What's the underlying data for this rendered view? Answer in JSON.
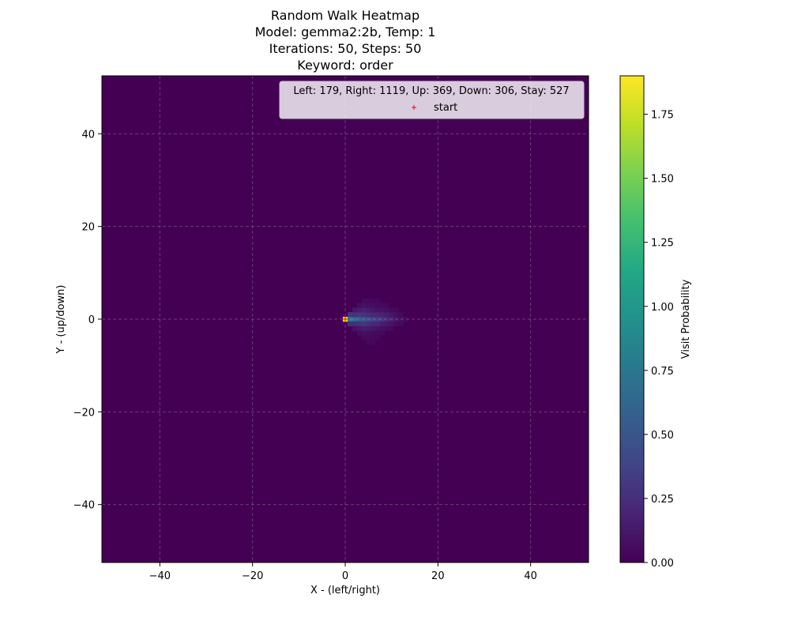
{
  "chart_data": {
    "type": "heatmap",
    "title_lines": [
      "Random Walk Heatmap",
      "Model: gemma2:2b, Temp: 1",
      "Iterations: 50, Steps: 50",
      "Keyword: order"
    ],
    "xlabel": "X - (left/right)",
    "ylabel": "Y - (up/down)",
    "xlim": [
      -52.5,
      52.5
    ],
    "ylim": [
      -52.5,
      52.5
    ],
    "xticks": [
      -40,
      -20,
      0,
      20,
      40
    ],
    "yticks": [
      -40,
      -20,
      0,
      20,
      40
    ],
    "xtick_labels": [
      "−40",
      "−20",
      "0",
      "20",
      "40"
    ],
    "ytick_labels": [
      "−40",
      "−20",
      "0",
      "20",
      "40"
    ],
    "grid": true,
    "colorbar": {
      "label": "Visit Probability",
      "range": [
        0,
        1.9
      ],
      "ticks": [
        0.0,
        0.25,
        0.5,
        0.75,
        1.0,
        1.25,
        1.5,
        1.75
      ],
      "tick_labels": [
        "0.00",
        "0.25",
        "0.50",
        "0.75",
        "1.00",
        "1.25",
        "1.50",
        "1.75"
      ],
      "colormap": "viridis"
    },
    "legend": {
      "placement": "top-right",
      "summary": "Left: 179, Right: 1119, Up: 369, Down: 306, Stay: 527",
      "entries": [
        {
          "label": "start",
          "marker": "+",
          "color": "#ff0000"
        }
      ]
    },
    "start_point": [
      0,
      0
    ],
    "cells": [
      [
        0,
        0,
        1.9
      ],
      [
        1,
        0,
        0.75
      ],
      [
        2,
        0,
        0.65
      ],
      [
        3,
        0,
        0.55
      ],
      [
        4,
        0,
        0.5
      ],
      [
        5,
        0,
        0.45
      ],
      [
        6,
        0,
        0.4
      ],
      [
        7,
        0,
        0.35
      ],
      [
        8,
        0,
        0.3
      ],
      [
        9,
        0,
        0.22
      ],
      [
        10,
        0,
        0.18
      ],
      [
        11,
        0,
        0.12
      ],
      [
        12,
        0,
        0.08
      ],
      [
        13,
        0,
        0.05
      ],
      [
        1,
        1,
        0.3
      ],
      [
        2,
        1,
        0.28
      ],
      [
        3,
        1,
        0.3
      ],
      [
        4,
        1,
        0.28
      ],
      [
        5,
        1,
        0.25
      ],
      [
        6,
        1,
        0.22
      ],
      [
        7,
        1,
        0.2
      ],
      [
        8,
        1,
        0.18
      ],
      [
        9,
        1,
        0.15
      ],
      [
        10,
        1,
        0.12
      ],
      [
        11,
        1,
        0.08
      ],
      [
        12,
        1,
        0.05
      ],
      [
        1,
        -1,
        0.25
      ],
      [
        2,
        -1,
        0.25
      ],
      [
        3,
        -1,
        0.28
      ],
      [
        4,
        -1,
        0.3
      ],
      [
        5,
        -1,
        0.25
      ],
      [
        6,
        -1,
        0.22
      ],
      [
        7,
        -1,
        0.2
      ],
      [
        8,
        -1,
        0.15
      ],
      [
        9,
        -1,
        0.12
      ],
      [
        10,
        -1,
        0.1
      ],
      [
        11,
        -1,
        0.06
      ],
      [
        12,
        -1,
        0.04
      ],
      [
        2,
        2,
        0.12
      ],
      [
        3,
        2,
        0.15
      ],
      [
        4,
        2,
        0.18
      ],
      [
        5,
        2,
        0.15
      ],
      [
        6,
        2,
        0.12
      ],
      [
        7,
        2,
        0.1
      ],
      [
        8,
        2,
        0.1
      ],
      [
        9,
        2,
        0.08
      ],
      [
        10,
        2,
        0.06
      ],
      [
        11,
        2,
        0.04
      ],
      [
        2,
        -2,
        0.1
      ],
      [
        3,
        -2,
        0.12
      ],
      [
        4,
        -2,
        0.15
      ],
      [
        5,
        -2,
        0.14
      ],
      [
        6,
        -2,
        0.12
      ],
      [
        7,
        -2,
        0.1
      ],
      [
        8,
        -2,
        0.08
      ],
      [
        9,
        -2,
        0.06
      ],
      [
        10,
        -2,
        0.04
      ],
      [
        3,
        3,
        0.07
      ],
      [
        4,
        3,
        0.09
      ],
      [
        5,
        3,
        0.08
      ],
      [
        6,
        3,
        0.07
      ],
      [
        7,
        3,
        0.05
      ],
      [
        8,
        3,
        0.05
      ],
      [
        9,
        3,
        0.04
      ],
      [
        4,
        4,
        0.05
      ],
      [
        5,
        4,
        0.05
      ],
      [
        6,
        4,
        0.04
      ],
      [
        7,
        4,
        0.03
      ],
      [
        3,
        -3,
        0.06
      ],
      [
        4,
        -3,
        0.08
      ],
      [
        5,
        -3,
        0.07
      ],
      [
        6,
        -3,
        0.06
      ],
      [
        7,
        -3,
        0.05
      ],
      [
        8,
        -3,
        0.04
      ],
      [
        4,
        -4,
        0.04
      ],
      [
        5,
        -4,
        0.05
      ],
      [
        6,
        -4,
        0.04
      ],
      [
        7,
        -4,
        0.03
      ],
      [
        5,
        -5,
        0.03
      ],
      [
        6,
        -5,
        0.03
      ]
    ]
  }
}
